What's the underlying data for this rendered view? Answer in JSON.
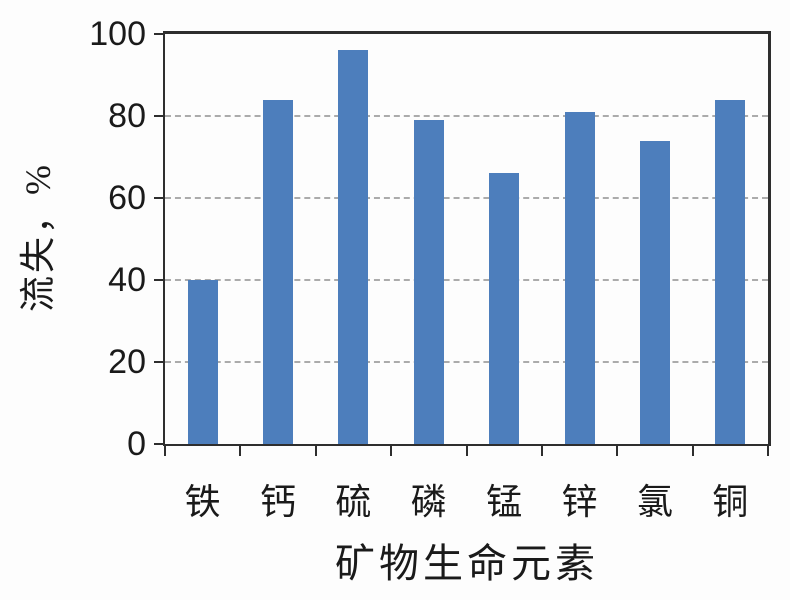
{
  "chart_data": {
    "type": "bar",
    "title": "",
    "xlabel": "矿物生命元素",
    "ylabel": "流失，%",
    "categories": [
      "铁",
      "钙",
      "硫",
      "磷",
      "锰",
      "锌",
      "氯",
      "铜"
    ],
    "values": [
      40,
      84,
      96,
      79,
      66,
      81,
      74,
      84
    ],
    "ylim": [
      0,
      100
    ],
    "yticks": [
      0,
      20,
      40,
      60,
      80,
      100
    ],
    "grid": "horizontal-dashed",
    "legend": "none",
    "colors": {
      "bar": "#4d7ebc",
      "axis": "#2e2e2e",
      "gridline": "#ababab",
      "text": "#1a1a1a",
      "background": "#fdfdfd"
    }
  }
}
